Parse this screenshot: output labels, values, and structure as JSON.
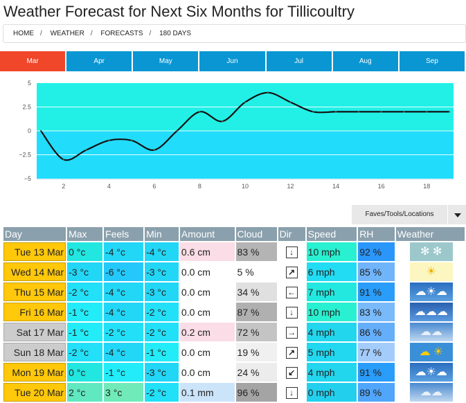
{
  "title": "Weather Forecast for Next Six Months for Tillicoultry",
  "breadcrumb": [
    "HOME",
    "WEATHER",
    "FORECASTS",
    "180 DAYS"
  ],
  "months": [
    "Mar",
    "Apr",
    "May",
    "Jun",
    "Jul",
    "Aug",
    "Sep"
  ],
  "faves_label": "Faves/Tools/Locations",
  "chart_data": {
    "type": "line",
    "x": [
      1,
      2,
      3,
      4,
      5,
      6,
      7,
      8,
      9,
      10,
      11,
      12,
      13,
      14,
      15,
      16,
      17,
      18,
      19
    ],
    "values": [
      0,
      -3,
      -2,
      -1,
      -1,
      -2,
      0,
      2,
      1,
      3,
      4,
      3,
      2,
      2,
      2,
      2,
      2,
      2,
      2
    ],
    "ylim": [
      -5,
      5
    ],
    "yticks": [
      "5",
      "2.5",
      "0",
      "−2.5",
      "−5"
    ],
    "xticks": [
      "2",
      "4",
      "6",
      "8",
      "10",
      "12",
      "14",
      "16",
      "18"
    ],
    "grid": true,
    "colors": {
      "above": "#22f0e6",
      "below": "#22dcfc",
      "line": "#111"
    }
  },
  "headers": [
    "Day",
    "Max",
    "Feels",
    "Min",
    "Amount",
    "Cloud",
    "Dir",
    "Speed",
    "RH",
    "Weather"
  ],
  "rows": [
    {
      "day": "Tue 13 Mar",
      "we": false,
      "max": "0 °c",
      "maxc": "#22e6e0",
      "feels": "-4 °c",
      "feelsc": "#22d6f6",
      "min": "-4 °c",
      "minc": "#22d6f6",
      "amount": "0.6 cm",
      "amountc": "#fadde6",
      "cloud": "83 %",
      "cloudc": "#b4b4b4",
      "dir": "↓",
      "speed": "10 mph",
      "speedc": "#28f0d0",
      "rh": "92 %",
      "rhc": "#2a96fa",
      "weather": "snow-icon"
    },
    {
      "day": "Wed 14 Mar",
      "we": false,
      "max": "-3 °c",
      "maxc": "#22d6f6",
      "feels": "-6 °c",
      "feelsc": "#24c8fa",
      "min": "-3 °c",
      "minc": "#22d6f6",
      "amount": "0.0 cm",
      "amountc": "#fff",
      "cloud": "5 %",
      "cloudc": "#fff",
      "dir": "↗",
      "speed": "6 mph",
      "speedc": "#22dcf4",
      "rh": "85 %",
      "rhc": "#70b4fa",
      "weather": "sunny-icon"
    },
    {
      "day": "Thu 15 Mar",
      "we": false,
      "max": "-2 °c",
      "maxc": "#22e0f8",
      "feels": "-4 °c",
      "feelsc": "#22d6f6",
      "min": "-3 °c",
      "minc": "#22d6f6",
      "amount": "0.0 cm",
      "amountc": "#fff",
      "cloud": "34 %",
      "cloudc": "#e0e0e0",
      "dir": "←",
      "speed": "7 mph",
      "speedc": "#22e8e0",
      "rh": "91 %",
      "rhc": "#2a9cfa",
      "weather": "partly-cloudy-icon"
    },
    {
      "day": "Fri 16 Mar",
      "we": false,
      "max": "-1 °c",
      "maxc": "#22ecf8",
      "feels": "-4 °c",
      "feelsc": "#22d6f6",
      "min": "-2 °c",
      "minc": "#22e0f8",
      "amount": "0.0 cm",
      "amountc": "#fff",
      "cloud": "87 %",
      "cloudc": "#b0b0b0",
      "dir": "↓",
      "speed": "10 mph",
      "speedc": "#28f0d0",
      "rh": "83 %",
      "rhc": "#78bafa",
      "weather": "cloudy-icon"
    },
    {
      "day": "Sat 17 Mar",
      "we": true,
      "max": "-1 °c",
      "maxc": "#22ecf8",
      "feels": "-2 °c",
      "feelsc": "#22e0f8",
      "min": "-2 °c",
      "minc": "#22e0f8",
      "amount": "0.2 cm",
      "amountc": "#fadde6",
      "cloud": "72 %",
      "cloudc": "#c4c4c4",
      "dir": "→",
      "speed": "4 mph",
      "speedc": "#22d6ee",
      "rh": "86 %",
      "rhc": "#64aefa",
      "weather": "overcast-icon"
    },
    {
      "day": "Sun 18 Mar",
      "we": true,
      "max": "-2 °c",
      "maxc": "#22e0f8",
      "feels": "-4 °c",
      "feelsc": "#22d6f6",
      "min": "-1 °c",
      "minc": "#22ecf8",
      "amount": "0.0 cm",
      "amountc": "#fff",
      "cloud": "19 %",
      "cloudc": "#f0f0f0",
      "dir": "↗",
      "speed": "5 mph",
      "speedc": "#22d8f0",
      "rh": "77 %",
      "rhc": "#a4ccfa",
      "weather": "sun-cloud-icon"
    },
    {
      "day": "Mon 19 Mar",
      "we": false,
      "max": "0 °c",
      "maxc": "#22e6e0",
      "feels": "-1 °c",
      "feelsc": "#22ecf8",
      "min": "-3 °c",
      "minc": "#22d6f6",
      "amount": "0.0 cm",
      "amountc": "#fff",
      "cloud": "24 %",
      "cloudc": "#ececec",
      "dir": "↙",
      "speed": "4 mph",
      "speedc": "#22d6ee",
      "rh": "91 %",
      "rhc": "#2a9cfa",
      "weather": "partly-cloudy-icon"
    },
    {
      "day": "Tue 20 Mar",
      "we": false,
      "max": "2 °c",
      "maxc": "#60e8c0",
      "feels": "3 °c",
      "feelsc": "#70eab8",
      "min": "-2 °c",
      "minc": "#22e0f8",
      "amount": "0.1 mm",
      "amountc": "#cce4fa",
      "cloud": "96 %",
      "cloudc": "#a4a4a4",
      "dir": "↓",
      "speed": "0 mph",
      "speedc": "#22d0ee",
      "rh": "89 %",
      "rhc": "#50a6fa",
      "weather": "overcast-icon"
    }
  ]
}
